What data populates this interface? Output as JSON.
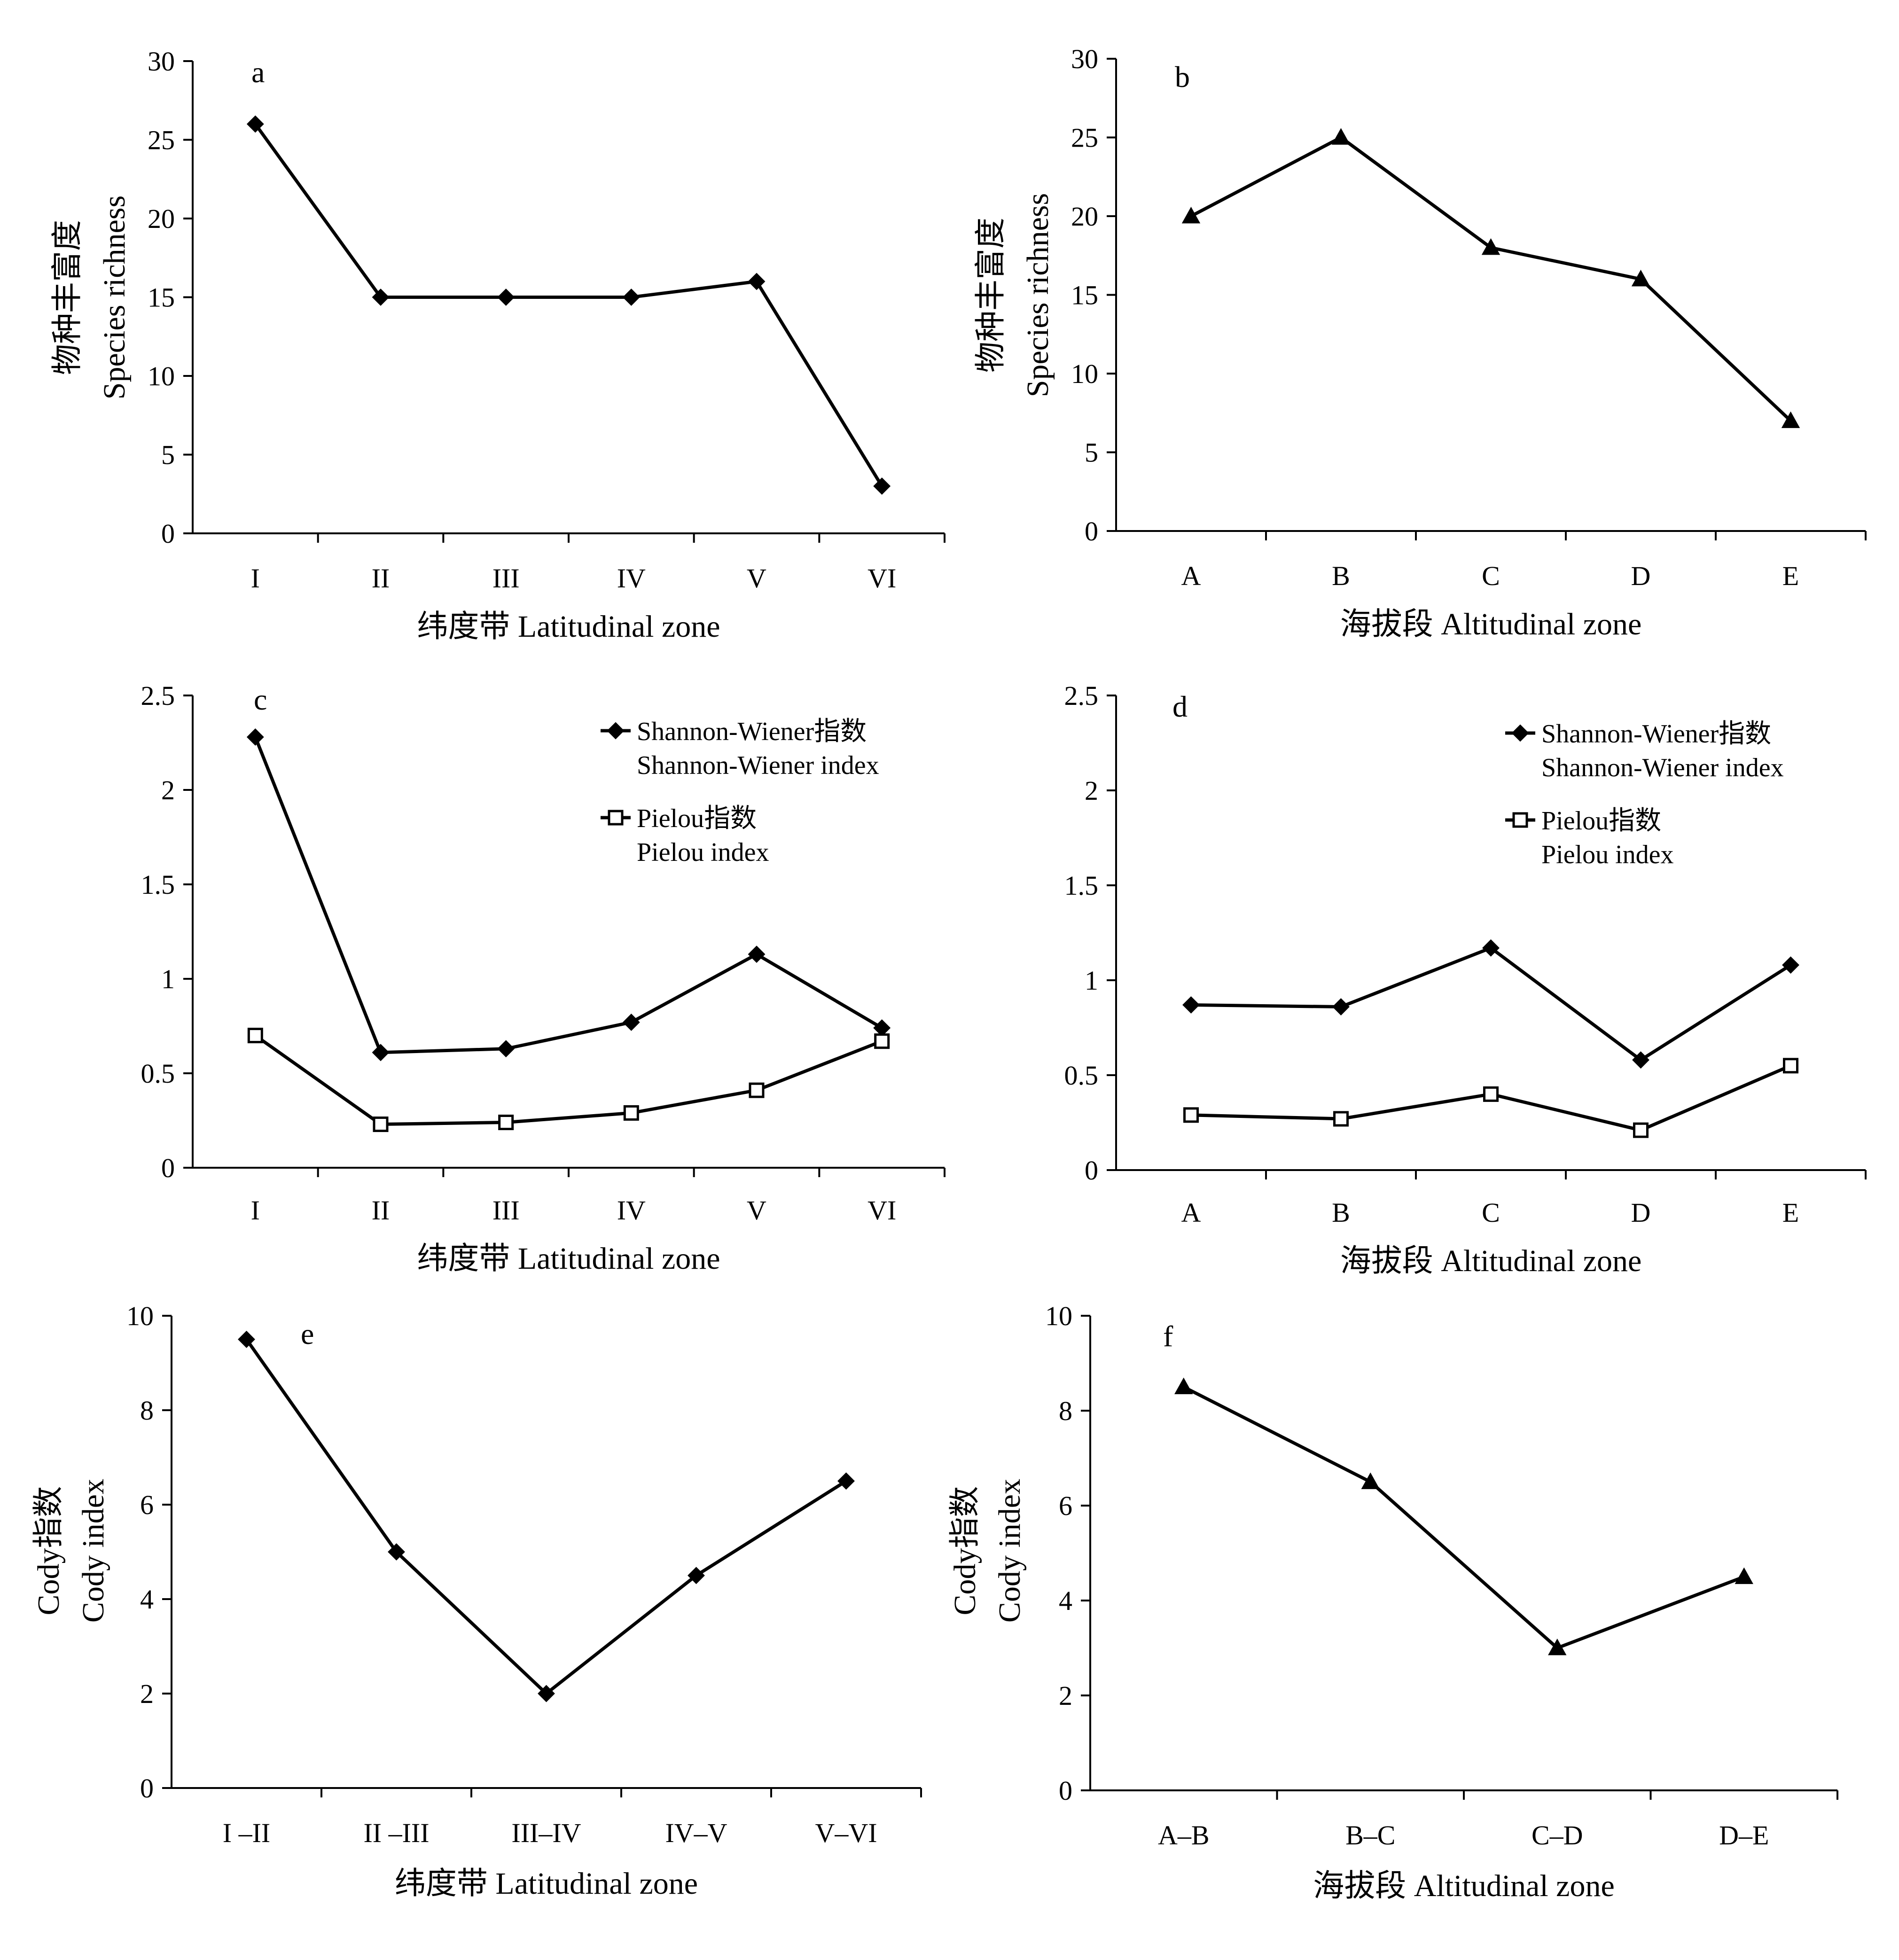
{
  "chart_data": [
    {
      "panel": "a",
      "type": "line",
      "xlabel": "纬度带 Latitudinal zone",
      "ylabel_lines": [
        "物种丰富度",
        "Species richness"
      ],
      "categories": [
        "I",
        "II",
        "III",
        "IV",
        "V",
        "VI"
      ],
      "ylim": [
        0,
        30
      ],
      "yticks": [
        "0",
        "5",
        "10",
        "15",
        "20",
        "25",
        "30"
      ],
      "series": [
        {
          "marker": "diamond-filled",
          "values": [
            26,
            15,
            15,
            15,
            16,
            3
          ]
        }
      ],
      "grid": false
    },
    {
      "panel": "b",
      "type": "line",
      "xlabel": "海拔段 Altitudinal zone",
      "ylabel_lines": [
        "物种丰富度",
        "Species richness"
      ],
      "categories": [
        "A",
        "B",
        "C",
        "D",
        "E"
      ],
      "ylim": [
        0,
        30
      ],
      "yticks": [
        "0",
        "5",
        "10",
        "15",
        "20",
        "25",
        "30"
      ],
      "series": [
        {
          "marker": "triangle-filled",
          "values": [
            20,
            25,
            18,
            16,
            7
          ]
        }
      ],
      "grid": false
    },
    {
      "panel": "c",
      "type": "line",
      "xlabel": "纬度带 Latitudinal zone",
      "ylabel_lines": [],
      "categories": [
        "I",
        "II",
        "III",
        "IV",
        "V",
        "VI"
      ],
      "ylim": [
        0,
        2.5
      ],
      "yticks": [
        "0",
        "0.5",
        "1",
        "1.5",
        "2",
        "2.5"
      ],
      "legend_position": "top-right",
      "series": [
        {
          "name_lines": [
            "Shannon-Wiener指数",
            "Shannon-Wiener index"
          ],
          "marker": "diamond-filled",
          "values": [
            2.28,
            0.61,
            0.63,
            0.77,
            1.13,
            0.74
          ]
        },
        {
          "name_lines": [
            "Pielou指数",
            "Pielou index"
          ],
          "marker": "square-open",
          "values": [
            0.7,
            0.23,
            0.24,
            0.29,
            0.41,
            0.67
          ]
        }
      ],
      "grid": false
    },
    {
      "panel": "d",
      "type": "line",
      "xlabel": "海拔段 Altitudinal zone",
      "ylabel_lines": [],
      "categories": [
        "A",
        "B",
        "C",
        "D",
        "E"
      ],
      "ylim": [
        0,
        2.5
      ],
      "yticks": [
        "0",
        "0.5",
        "1",
        "1.5",
        "2",
        "2.5"
      ],
      "legend_position": "top-right",
      "series": [
        {
          "name_lines": [
            "Shannon-Wiener指数",
            "Shannon-Wiener index"
          ],
          "marker": "diamond-filled",
          "values": [
            0.87,
            0.86,
            1.17,
            0.58,
            1.08
          ]
        },
        {
          "name_lines": [
            "Pielou指数",
            "Pielou index"
          ],
          "marker": "square-open",
          "values": [
            0.29,
            0.27,
            0.4,
            0.21,
            0.55
          ]
        }
      ],
      "grid": false
    },
    {
      "panel": "e",
      "type": "line",
      "xlabel": "纬度带 Latitudinal zone",
      "ylabel_lines": [
        "Cody指数",
        "Cody index"
      ],
      "categories": [
        "I –II",
        "II –III",
        "III–IV",
        "IV–V",
        "V–VI"
      ],
      "ylim": [
        0,
        10
      ],
      "yticks": [
        "0",
        "2",
        "4",
        "6",
        "8",
        "10"
      ],
      "series": [
        {
          "marker": "diamond-filled",
          "values": [
            9.5,
            5,
            2,
            4.5,
            6.5
          ]
        }
      ],
      "grid": false
    },
    {
      "panel": "f",
      "type": "line",
      "xlabel": "海拔段 Altitudinal zone",
      "ylabel_lines": [
        "Cody指数",
        "Cody index"
      ],
      "categories": [
        "A–B",
        "B–C",
        "C–D",
        "D–E"
      ],
      "ylim": [
        0,
        10
      ],
      "yticks": [
        "0",
        "2",
        "4",
        "6",
        "8",
        "10"
      ],
      "series": [
        {
          "marker": "triangle-filled",
          "values": [
            8.5,
            6.5,
            3,
            4.5
          ]
        }
      ],
      "grid": false
    }
  ]
}
